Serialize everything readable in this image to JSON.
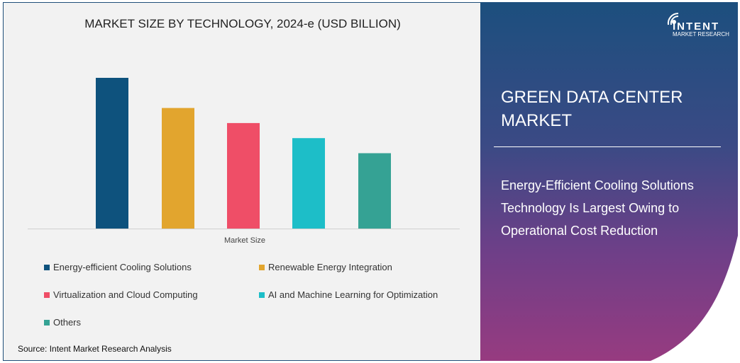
{
  "chart_data": {
    "type": "bar",
    "title": "MARKET SIZE BY TECHNOLOGY, 2024-e (USD BILLION)",
    "categories": [
      "Market Size"
    ],
    "series": [
      {
        "name": "Energy-efficient Cooling Solutions",
        "values": [
          100
        ],
        "color": "#0e527d"
      },
      {
        "name": "Renewable Energy Integration",
        "values": [
          80
        ],
        "color": "#e2a52e"
      },
      {
        "name": "Virtualization and Cloud Computing",
        "values": [
          70
        ],
        "color": "#ef4e67"
      },
      {
        "name": "AI and Machine Learning for Optimization",
        "values": [
          60
        ],
        "color": "#1dbec8"
      },
      {
        "name": "Others",
        "values": [
          50
        ],
        "color": "#35a294"
      }
    ],
    "ylim": [
      0,
      100
    ],
    "grid": false,
    "legend": "bottom"
  },
  "source": "Source: Intent Market Research Analysis",
  "side": {
    "title": "GREEN DATA CENTER MARKET",
    "headline": "Energy-Efficient Cooling Solutions Technology Is Largest Owing to Operational Cost Reduction",
    "logo_main": "INTENT",
    "logo_sub": "MARKET RESEARCH"
  }
}
